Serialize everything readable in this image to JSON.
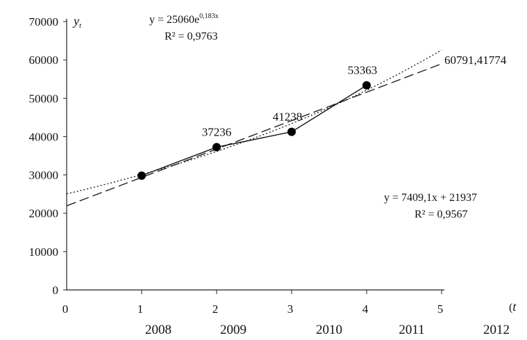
{
  "chart_data": {
    "type": "line",
    "x": [
      1,
      2,
      3,
      4
    ],
    "series": [
      {
        "values": [
          29818,
          37236,
          41238,
          53363
        ]
      }
    ],
    "data_labels": [
      "37236",
      "41238",
      "53363"
    ],
    "forecast_label": "60791,41774",
    "trendlines": [
      {
        "kind": "exponential",
        "a": 25060,
        "b": 0.183,
        "equation": "y = 25060e",
        "exponent": "0,183x",
        "r2": "R² = 0,9763"
      },
      {
        "kind": "linear",
        "slope": 7409.1,
        "intercept": 21937,
        "equation": "y = 7409,1x + 21937",
        "r2": "R² = 0,9567"
      }
    ],
    "xlim": [
      0,
      5
    ],
    "ylim": [
      0,
      70000
    ],
    "x_ticks": [
      "0",
      "1",
      "2",
      "3",
      "4",
      "5"
    ],
    "y_ticks": [
      "0",
      "10000",
      "20000",
      "30000",
      "40000",
      "50000",
      "60000",
      "70000"
    ],
    "year_labels": [
      "2008",
      "2009",
      "2010",
      "2011",
      "2012"
    ],
    "ylabel": "y",
    "ylabel_sub": "t",
    "xlabel": "t",
    "xlabel_prefix": "(",
    "grid": false
  }
}
